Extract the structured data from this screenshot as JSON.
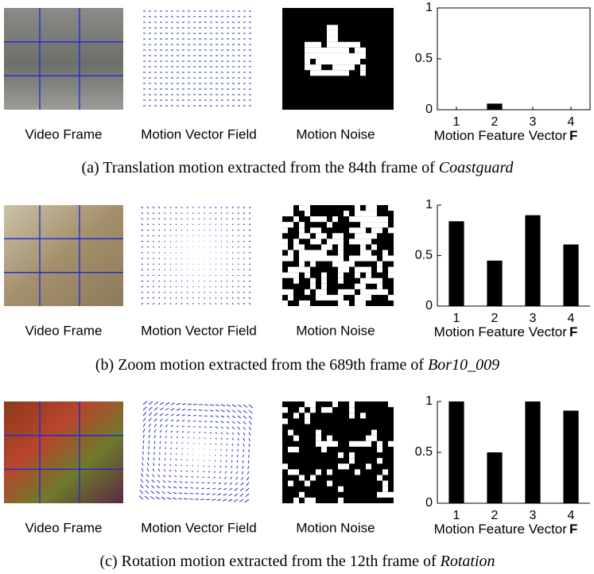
{
  "panels": [
    {
      "labels": [
        "Video Frame",
        "Motion Vector Field",
        "Motion Noise"
      ],
      "caption": {
        "prefix": "(a) Translation motion extracted from the 84th frame of ",
        "name": "Coastguard"
      }
    },
    {
      "labels": [
        "Video Frame",
        "Motion Vector Field",
        "Motion Noise"
      ],
      "caption": {
        "prefix": "(b) Zoom motion extracted from the 689th frame of ",
        "name": "Bor10_009"
      }
    },
    {
      "labels": [
        "Video Frame",
        "Motion Vector Field",
        "Motion Noise"
      ],
      "caption": {
        "prefix": "(c) Rotation motion extracted from the 12th frame of ",
        "name": "Rotation"
      }
    }
  ],
  "chart_data": [
    {
      "type": "bar",
      "categories": [
        "1",
        "2",
        "3",
        "4"
      ],
      "values": [
        0,
        0.06,
        0,
        0
      ],
      "color": "#000000",
      "ylim": [
        0,
        1
      ],
      "yticks": [
        0,
        0.5,
        1
      ],
      "xlabel": "Motion Feature Vector",
      "xlabel_bold": "F",
      "box": true
    },
    {
      "type": "bar",
      "categories": [
        "1",
        "2",
        "3",
        "4"
      ],
      "values": [
        0.84,
        0.45,
        0.9,
        0.61
      ],
      "color": "#000000",
      "ylim": [
        0,
        1
      ],
      "yticks": [
        0,
        0.5,
        1
      ],
      "xlabel": "Motion Feature Vector",
      "xlabel_bold": "F",
      "box": false
    },
    {
      "type": "bar",
      "categories": [
        "1",
        "2",
        "3",
        "4"
      ],
      "values": [
        1,
        0.5,
        1,
        0.91
      ],
      "color": "#000000",
      "ylim": [
        0,
        1
      ],
      "yticks": [
        0,
        0.5,
        1
      ],
      "xlabel": "Motion Feature Vector",
      "xlabel_bold": "F",
      "box": false
    }
  ]
}
